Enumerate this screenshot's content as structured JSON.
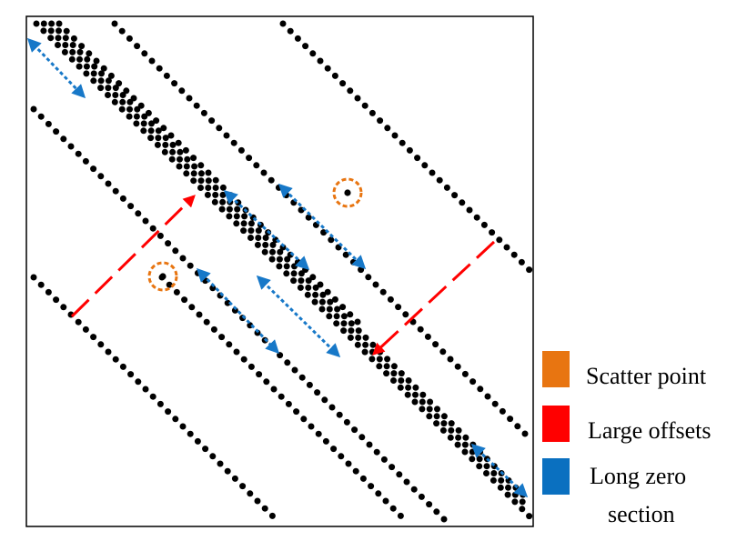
{
  "legend": [
    {
      "label": "Scatter point",
      "color": "#E87511"
    },
    {
      "label": "Large offsets",
      "color": "#FF0000"
    },
    {
      "label": "Long zero",
      "label_line2": "section",
      "color": "#0A70C0"
    }
  ],
  "colors": {
    "dot": "#000000",
    "frame": "#000000",
    "scatter_ring": "#E87511",
    "large_offset_arrow": "#FF0000",
    "zero_section_arrow": "#1778C8"
  }
}
